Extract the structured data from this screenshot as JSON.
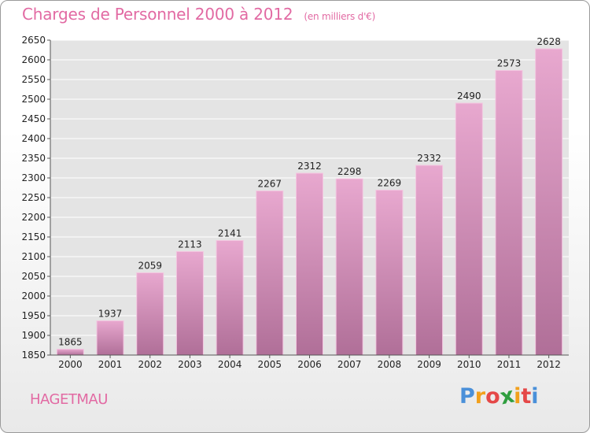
{
  "chart_data": {
    "type": "bar",
    "title": "Charges de Personnel 2000 à 2012",
    "subtitle": "(en milliers d'€)",
    "categories": [
      "2000",
      "2001",
      "2002",
      "2003",
      "2004",
      "2005",
      "2006",
      "2007",
      "2008",
      "2009",
      "2010",
      "2011",
      "2012"
    ],
    "values": [
      1865,
      1937,
      2059,
      2113,
      2141,
      2267,
      2312,
      2298,
      2269,
      2332,
      2490,
      2573,
      2628
    ],
    "ylim": [
      1850,
      2650
    ],
    "yticks": [
      1850,
      1900,
      1950,
      2000,
      2050,
      2100,
      2150,
      2200,
      2250,
      2300,
      2350,
      2400,
      2450,
      2500,
      2550,
      2600,
      2650
    ],
    "xlabel": "",
    "ylabel": "",
    "grid": true,
    "bar_color": "#d98bb8"
  },
  "location": "HAGETMAU",
  "logo": {
    "text": "Proxiti",
    "letters": [
      "P",
      "r",
      "o",
      "x",
      "i",
      "t",
      "i"
    ],
    "colors": [
      "#4a90d9",
      "#f2a01c",
      "#e54848",
      "#2f9e3f",
      "#f2a01c",
      "#e54848",
      "#4a90d9"
    ]
  }
}
